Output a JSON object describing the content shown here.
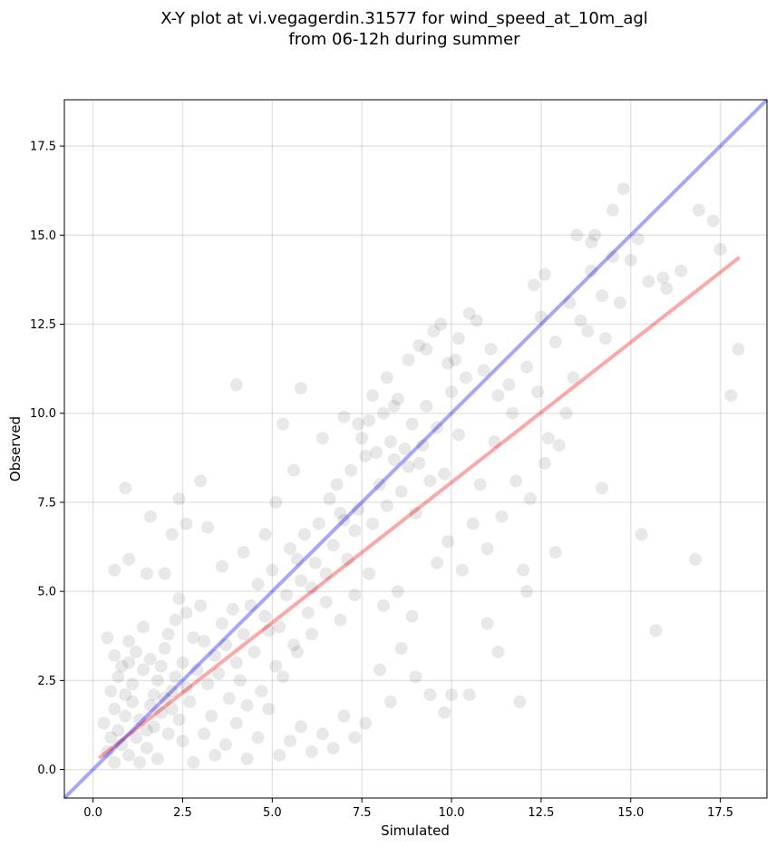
{
  "chart_data": {
    "type": "scatter",
    "title": "X-Y plot at vi.vegagerdin.31577 for wind_speed_at_10m_agl",
    "subtitle": "from 06-12h during summer",
    "xlabel": "Simulated",
    "ylabel": "Observed",
    "xlim": [
      -0.8,
      18.8
    ],
    "ylim": [
      -0.8,
      18.8
    ],
    "xticks": [
      "0.0",
      "2.5",
      "5.0",
      "7.5",
      "10.0",
      "12.5",
      "15.0",
      "17.5"
    ],
    "yticks": [
      "0.0",
      "2.5",
      "5.0",
      "7.5",
      "10.0",
      "12.5",
      "15.0",
      "17.5"
    ],
    "grid": true,
    "point_color": "#000000",
    "point_opacity": 0.09,
    "identity_line": {
      "color": "#0000ff",
      "opacity": 0.35,
      "from": [
        -0.8,
        -0.8
      ],
      "to": [
        18.8,
        18.8
      ]
    },
    "fit_line": {
      "color": "#ff0000",
      "opacity": 0.35,
      "from": [
        0.2,
        0.35
      ],
      "to": [
        18.0,
        14.35
      ]
    },
    "points": [
      [
        0.3,
        1.3
      ],
      [
        0.4,
        0.5
      ],
      [
        0.5,
        0.9
      ],
      [
        0.6,
        0.2
      ],
      [
        0.7,
        1.1
      ],
      [
        0.8,
        0.7
      ],
      [
        0.9,
        1.5
      ],
      [
        1.0,
        0.4
      ],
      [
        1.1,
        1.9
      ],
      [
        1.2,
        0.9
      ],
      [
        0.5,
        2.2
      ],
      [
        0.6,
        1.7
      ],
      [
        0.7,
        2.6
      ],
      [
        0.9,
        2.1
      ],
      [
        1.0,
        3.0
      ],
      [
        1.1,
        2.4
      ],
      [
        1.3,
        1.4
      ],
      [
        1.4,
        2.8
      ],
      [
        1.5,
        0.6
      ],
      [
        1.6,
        1.8
      ],
      [
        0.4,
        3.7
      ],
      [
        0.6,
        3.2
      ],
      [
        0.8,
        2.9
      ],
      [
        1.0,
        3.6
      ],
      [
        1.2,
        3.3
      ],
      [
        1.4,
        4.0
      ],
      [
        1.6,
        3.1
      ],
      [
        1.8,
        2.5
      ],
      [
        2.0,
        3.4
      ],
      [
        2.2,
        2.2
      ],
      [
        1.7,
        1.2
      ],
      [
        1.8,
        0.3
      ],
      [
        1.9,
        1.6
      ],
      [
        2.0,
        2.0
      ],
      [
        2.1,
        1.0
      ],
      [
        2.2,
        1.7
      ],
      [
        2.3,
        2.6
      ],
      [
        2.4,
        1.4
      ],
      [
        2.5,
        0.8
      ],
      [
        2.6,
        2.3
      ],
      [
        1.3,
        0.2
      ],
      [
        1.5,
        1.1
      ],
      [
        1.7,
        2.1
      ],
      [
        1.9,
        2.9
      ],
      [
        2.1,
        3.8
      ],
      [
        2.3,
        4.2
      ],
      [
        2.5,
        3.0
      ],
      [
        2.7,
        1.9
      ],
      [
        2.9,
        2.8
      ],
      [
        3.1,
        3.6
      ],
      [
        2.4,
        4.8
      ],
      [
        2.6,
        4.4
      ],
      [
        2.8,
        3.7
      ],
      [
        3.0,
        4.6
      ],
      [
        3.2,
        2.4
      ],
      [
        3.4,
        3.2
      ],
      [
        3.6,
        4.1
      ],
      [
        3.8,
        2.0
      ],
      [
        4.0,
        3.0
      ],
      [
        4.2,
        3.8
      ],
      [
        3.3,
        1.5
      ],
      [
        3.5,
        2.7
      ],
      [
        3.7,
        3.5
      ],
      [
        3.9,
        4.5
      ],
      [
        4.1,
        2.5
      ],
      [
        4.3,
        1.8
      ],
      [
        4.5,
        3.3
      ],
      [
        4.7,
        2.2
      ],
      [
        4.9,
        3.9
      ],
      [
        5.1,
        2.9
      ],
      [
        4.4,
        4.6
      ],
      [
        4.6,
        5.2
      ],
      [
        4.8,
        4.3
      ],
      [
        5.0,
        5.6
      ],
      [
        5.2,
        4.0
      ],
      [
        5.4,
        4.9
      ],
      [
        5.6,
        3.5
      ],
      [
        5.8,
        5.3
      ],
      [
        6.0,
        4.4
      ],
      [
        6.2,
        5.8
      ],
      [
        5.5,
        6.2
      ],
      [
        5.7,
        5.9
      ],
      [
        5.9,
        6.6
      ],
      [
        6.1,
        5.1
      ],
      [
        6.3,
        6.9
      ],
      [
        6.5,
        5.5
      ],
      [
        6.7,
        6.3
      ],
      [
        6.9,
        7.2
      ],
      [
        7.1,
        5.9
      ],
      [
        7.3,
        6.7
      ],
      [
        6.6,
        7.6
      ],
      [
        6.8,
        8.0
      ],
      [
        7.0,
        7.0
      ],
      [
        7.2,
        8.4
      ],
      [
        7.4,
        7.3
      ],
      [
        7.6,
        8.8
      ],
      [
        7.8,
        6.9
      ],
      [
        8.0,
        8.0
      ],
      [
        8.2,
        7.4
      ],
      [
        8.4,
        8.7
      ],
      [
        7.5,
        9.3
      ],
      [
        7.7,
        9.8
      ],
      [
        7.9,
        8.9
      ],
      [
        8.1,
        10.0
      ],
      [
        8.3,
        9.2
      ],
      [
        8.5,
        10.4
      ],
      [
        8.7,
        9.0
      ],
      [
        8.9,
        9.7
      ],
      [
        9.1,
        8.6
      ],
      [
        9.3,
        10.2
      ],
      [
        8.6,
        7.8
      ],
      [
        8.8,
        8.5
      ],
      [
        9.0,
        7.2
      ],
      [
        9.2,
        9.1
      ],
      [
        9.4,
        8.1
      ],
      [
        9.6,
        9.6
      ],
      [
        9.8,
        8.3
      ],
      [
        10.0,
        10.6
      ],
      [
        10.2,
        9.4
      ],
      [
        10.4,
        11.0
      ],
      [
        9.3,
        11.8
      ],
      [
        9.7,
        12.5
      ],
      [
        10.1,
        11.5
      ],
      [
        10.5,
        12.8
      ],
      [
        10.9,
        11.2
      ],
      [
        11.3,
        10.5
      ],
      [
        11.7,
        10.0
      ],
      [
        12.1,
        11.3
      ],
      [
        12.5,
        12.7
      ],
      [
        12.9,
        12.0
      ],
      [
        13.3,
        13.1
      ],
      [
        13.6,
        12.6
      ],
      [
        13.9,
        14.0
      ],
      [
        14.2,
        13.3
      ],
      [
        14.5,
        14.4
      ],
      [
        14.8,
        16.3
      ],
      [
        15.2,
        14.9
      ],
      [
        15.5,
        13.7
      ],
      [
        15.9,
        13.8
      ],
      [
        16.4,
        14.0
      ],
      [
        16.9,
        15.7
      ],
      [
        17.3,
        15.4
      ],
      [
        17.5,
        14.6
      ],
      [
        18.0,
        11.8
      ],
      [
        17.8,
        10.5
      ],
      [
        16.8,
        5.9
      ],
      [
        15.7,
        3.9
      ],
      [
        15.3,
        6.6
      ],
      [
        14.2,
        7.9
      ],
      [
        12.9,
        6.1
      ],
      [
        12.1,
        5.0
      ],
      [
        12.0,
        5.6
      ],
      [
        11.9,
        1.9
      ],
      [
        11.3,
        3.3
      ],
      [
        11.0,
        4.1
      ],
      [
        10.0,
        2.1
      ],
      [
        10.5,
        2.1
      ],
      [
        9.8,
        1.6
      ],
      [
        9.4,
        2.1
      ],
      [
        9.0,
        2.6
      ],
      [
        8.6,
        3.4
      ],
      [
        8.3,
        1.9
      ],
      [
        8.0,
        2.8
      ],
      [
        7.6,
        1.3
      ],
      [
        7.3,
        0.9
      ],
      [
        7.0,
        1.5
      ],
      [
        6.7,
        0.6
      ],
      [
        6.4,
        1.0
      ],
      [
        6.1,
        0.5
      ],
      [
        5.8,
        1.2
      ],
      [
        5.5,
        0.8
      ],
      [
        5.2,
        0.4
      ],
      [
        4.9,
        1.7
      ],
      [
        4.6,
        0.9
      ],
      [
        4.3,
        0.3
      ],
      [
        4.0,
        1.3
      ],
      [
        3.7,
        0.7
      ],
      [
        3.4,
        0.4
      ],
      [
        3.1,
        1.0
      ],
      [
        2.8,
        0.2
      ],
      [
        8.9,
        4.3
      ],
      [
        8.5,
        5.0
      ],
      [
        8.1,
        4.6
      ],
      [
        7.7,
        5.5
      ],
      [
        7.3,
        4.9
      ],
      [
        6.9,
        4.2
      ],
      [
        6.5,
        4.7
      ],
      [
        6.1,
        3.8
      ],
      [
        5.7,
        3.3
      ],
      [
        5.3,
        2.6
      ],
      [
        9.6,
        5.8
      ],
      [
        9.9,
        6.4
      ],
      [
        10.3,
        5.6
      ],
      [
        10.6,
        6.9
      ],
      [
        11.0,
        6.2
      ],
      [
        11.4,
        7.1
      ],
      [
        11.8,
        8.1
      ],
      [
        12.2,
        7.6
      ],
      [
        12.6,
        8.6
      ],
      [
        13.0,
        9.1
      ],
      [
        10.8,
        8.0
      ],
      [
        11.2,
        9.2
      ],
      [
        11.6,
        10.8
      ],
      [
        12.4,
        10.6
      ],
      [
        12.7,
        9.3
      ],
      [
        13.2,
        10.0
      ],
      [
        13.4,
        11.0
      ],
      [
        13.8,
        12.3
      ],
      [
        14.3,
        12.1
      ],
      [
        14.7,
        13.1
      ],
      [
        4.0,
        10.8
      ],
      [
        5.3,
        9.7
      ],
      [
        5.8,
        10.7
      ],
      [
        3.0,
        8.1
      ],
      [
        2.4,
        7.6
      ],
      [
        0.9,
        7.9
      ],
      [
        1.6,
        7.1
      ],
      [
        2.2,
        6.6
      ],
      [
        1.0,
        5.9
      ],
      [
        0.6,
        5.6
      ],
      [
        1.5,
        5.5
      ],
      [
        2.0,
        5.5
      ],
      [
        2.6,
        6.9
      ],
      [
        3.2,
        6.8
      ],
      [
        3.6,
        5.7
      ],
      [
        4.2,
        6.1
      ],
      [
        4.8,
        6.6
      ],
      [
        5.1,
        7.5
      ],
      [
        5.6,
        8.4
      ],
      [
        6.4,
        9.3
      ],
      [
        7.0,
        9.9
      ],
      [
        7.4,
        9.7
      ],
      [
        7.8,
        10.5
      ],
      [
        8.2,
        11.0
      ],
      [
        8.4,
        10.2
      ],
      [
        8.8,
        11.5
      ],
      [
        9.1,
        11.9
      ],
      [
        9.5,
        12.3
      ],
      [
        9.9,
        11.4
      ],
      [
        10.2,
        12.1
      ],
      [
        10.7,
        12.6
      ],
      [
        11.1,
        11.8
      ],
      [
        12.3,
        13.6
      ],
      [
        12.6,
        13.9
      ],
      [
        13.5,
        15.0
      ],
      [
        13.9,
        14.8
      ],
      [
        14.0,
        15.0
      ],
      [
        14.5,
        15.7
      ],
      [
        15.0,
        14.3
      ],
      [
        16.0,
        13.5
      ]
    ]
  }
}
